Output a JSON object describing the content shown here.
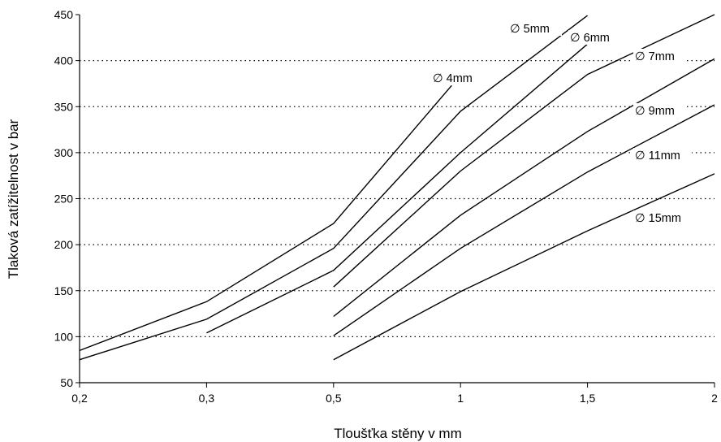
{
  "chart_data": {
    "type": "line",
    "title": "",
    "xlabel": "Tloušťka stěny v mm",
    "ylabel": "Tlaková zatížitelnost v bar",
    "x_categories": [
      "0,2",
      "0,3",
      "0,5",
      "1",
      "1,5",
      "2"
    ],
    "ylim": [
      50,
      450
    ],
    "yticks": [
      50,
      100,
      150,
      200,
      250,
      300,
      350,
      400,
      450
    ],
    "grid": "horizontal dotted",
    "legend": "inline labels",
    "line_color": "#000000",
    "series": [
      {
        "name": "∅ 4mm",
        "x": [
          0,
          1,
          2,
          2.93
        ],
        "y": [
          85,
          138,
          223,
          373
        ]
      },
      {
        "name": "∅ 5mm",
        "x": [
          0,
          1,
          2,
          3,
          4
        ],
        "y": [
          75,
          119,
          196,
          345,
          449
        ]
      },
      {
        "name": "∅ 6mm",
        "x": [
          1,
          2,
          3,
          4
        ],
        "y": [
          104,
          172,
          300,
          418
        ]
      },
      {
        "name": "∅ 7mm",
        "x": [
          2,
          3,
          4,
          5
        ],
        "y": [
          154,
          280,
          385,
          450
        ]
      },
      {
        "name": "∅ 9mm",
        "x": [
          2,
          3,
          4,
          5
        ],
        "y": [
          122,
          232,
          323,
          402
        ]
      },
      {
        "name": "∅ 11mm",
        "x": [
          2,
          3,
          4,
          5
        ],
        "y": [
          101,
          196,
          279,
          352
        ]
      },
      {
        "name": "∅ 15mm",
        "x": [
          2,
          3,
          4,
          5
        ],
        "y": [
          75,
          149,
          215,
          277
        ]
      }
    ]
  }
}
